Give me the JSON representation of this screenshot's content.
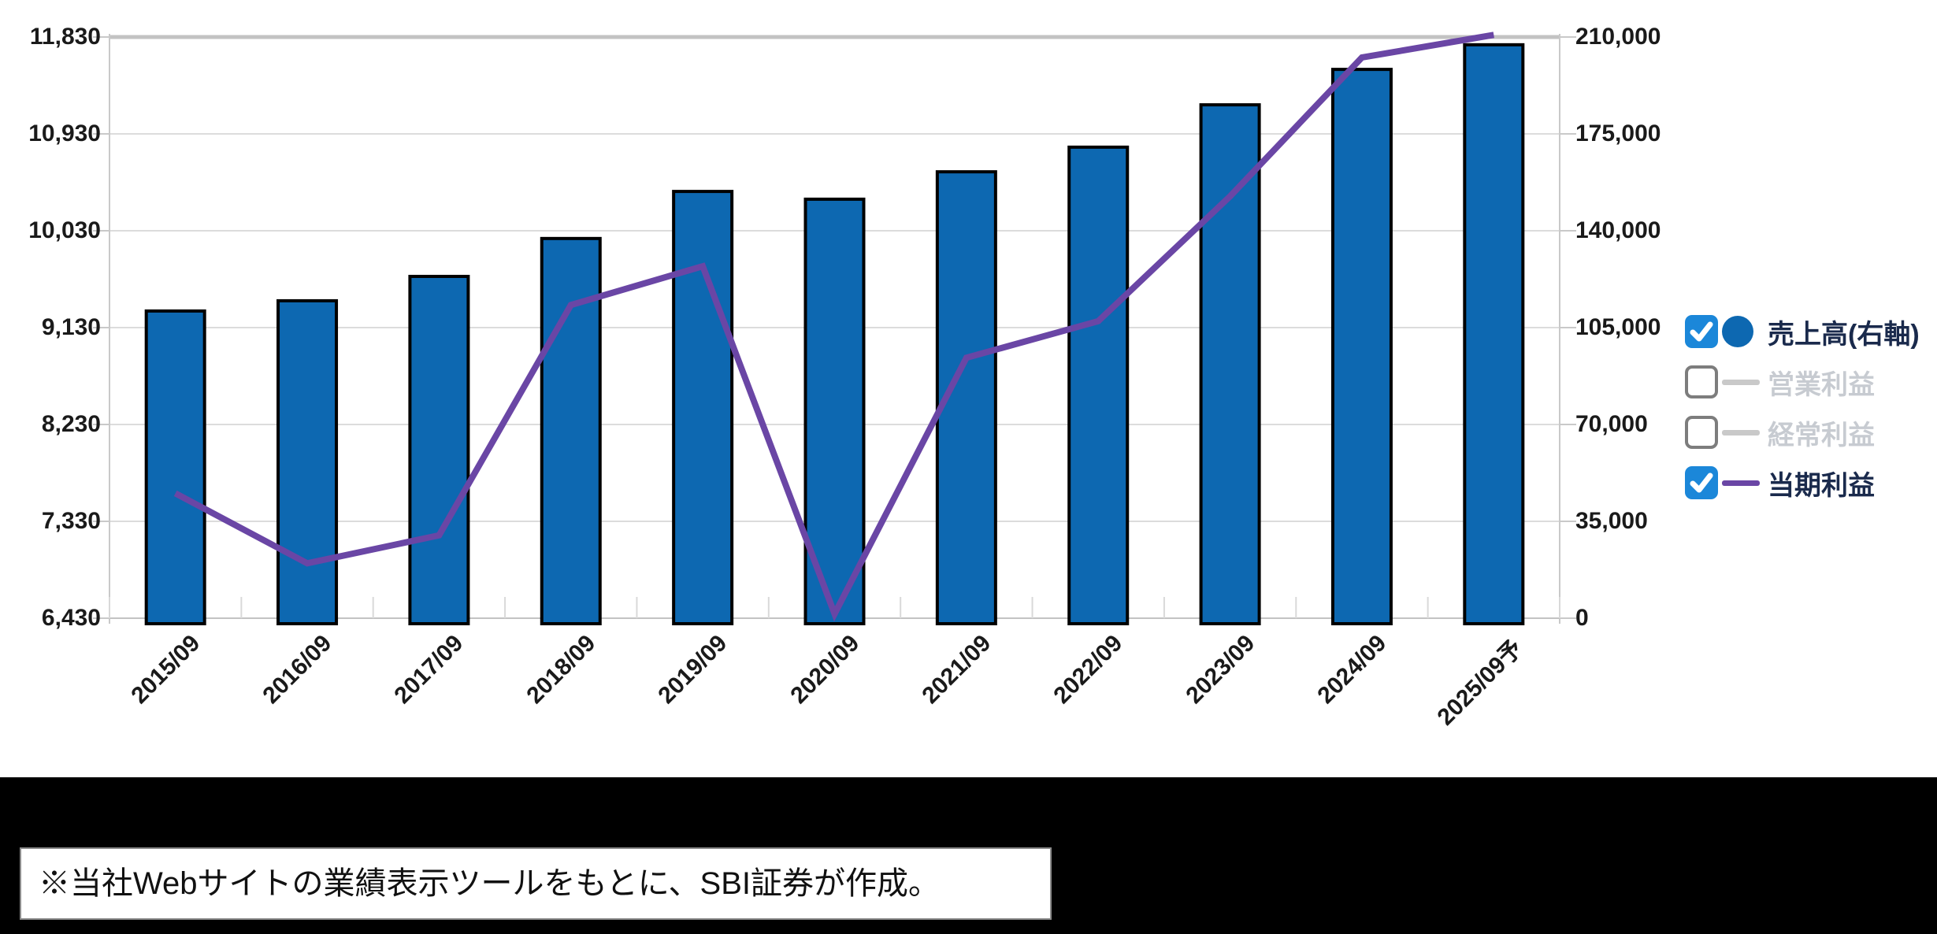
{
  "chart_data": {
    "type": "bar+line combo",
    "categories": [
      "2015/09",
      "2016/09",
      "2017/09",
      "2018/09",
      "2019/09",
      "2020/09",
      "2021/09",
      "2022/09",
      "2023/09",
      "2024/09",
      "2025/09予"
    ],
    "series": [
      {
        "name": "売上高(右軸)",
        "type": "bar",
        "axis": "right",
        "color": "#0d68b1",
        "bar_border_color": "#000000",
        "enabled": true,
        "values": [
          111000,
          114700,
          123500,
          137200,
          154200,
          151400,
          161300,
          170200,
          185500,
          198300,
          207200
        ]
      },
      {
        "name": "営業利益",
        "type": "line",
        "axis": "left",
        "color": "#c9c9c9",
        "enabled": false,
        "values": []
      },
      {
        "name": "経常利益",
        "type": "line",
        "axis": "left",
        "color": "#c9c9c9",
        "enabled": false,
        "values": []
      },
      {
        "name": "当期利益",
        "type": "line",
        "axis": "left",
        "color": "#6a46a5",
        "enabled": true,
        "values": [
          7590,
          6940,
          7200,
          9340,
          9700,
          6470,
          8850,
          9190,
          10350,
          11640,
          11850
        ]
      }
    ],
    "left_axis": {
      "min": 6430,
      "max": 11830,
      "tick_step": 900,
      "ticks": [
        "11,830",
        "10,930",
        "10,030",
        "9,130",
        "8,230",
        "7,330",
        "6,430"
      ],
      "tick_values": [
        11830,
        10930,
        10030,
        9130,
        8230,
        7330,
        6430
      ]
    },
    "right_axis": {
      "min": 0,
      "max": 210000,
      "tick_step": 35000,
      "ticks": [
        "210,000",
        "175,000",
        "140,000",
        "105,000",
        "70,000",
        "35,000",
        "0"
      ],
      "tick_values": [
        210000,
        175000,
        140000,
        105000,
        70000,
        35000,
        0
      ]
    },
    "grid": true,
    "legend_position": "right"
  },
  "legend": {
    "items": [
      {
        "label": "売上高(右軸)",
        "checked": true,
        "swatch": "circle",
        "color": "#0d68b1",
        "text_state": "on"
      },
      {
        "label": "営業利益",
        "checked": false,
        "swatch": "line",
        "color": "#c9c9c9",
        "text_state": "off"
      },
      {
        "label": "経常利益",
        "checked": false,
        "swatch": "line",
        "color": "#c9c9c9",
        "text_state": "off"
      },
      {
        "label": "当期利益",
        "checked": true,
        "swatch": "line",
        "color": "#6a46a5",
        "text_state": "on"
      }
    ]
  },
  "footnote": {
    "text": "※当社Webサイトの業績表示ツールをもとに、SBI証券が作成。"
  },
  "colors": {
    "bar_fill": "#0d68b1",
    "line_purple": "#6a46a5",
    "checkbox_blue": "#1b87d9",
    "gridline": "#dcdcdc",
    "axis_line": "#c3c3c3",
    "disabled_gray": "#c9c9c9"
  }
}
